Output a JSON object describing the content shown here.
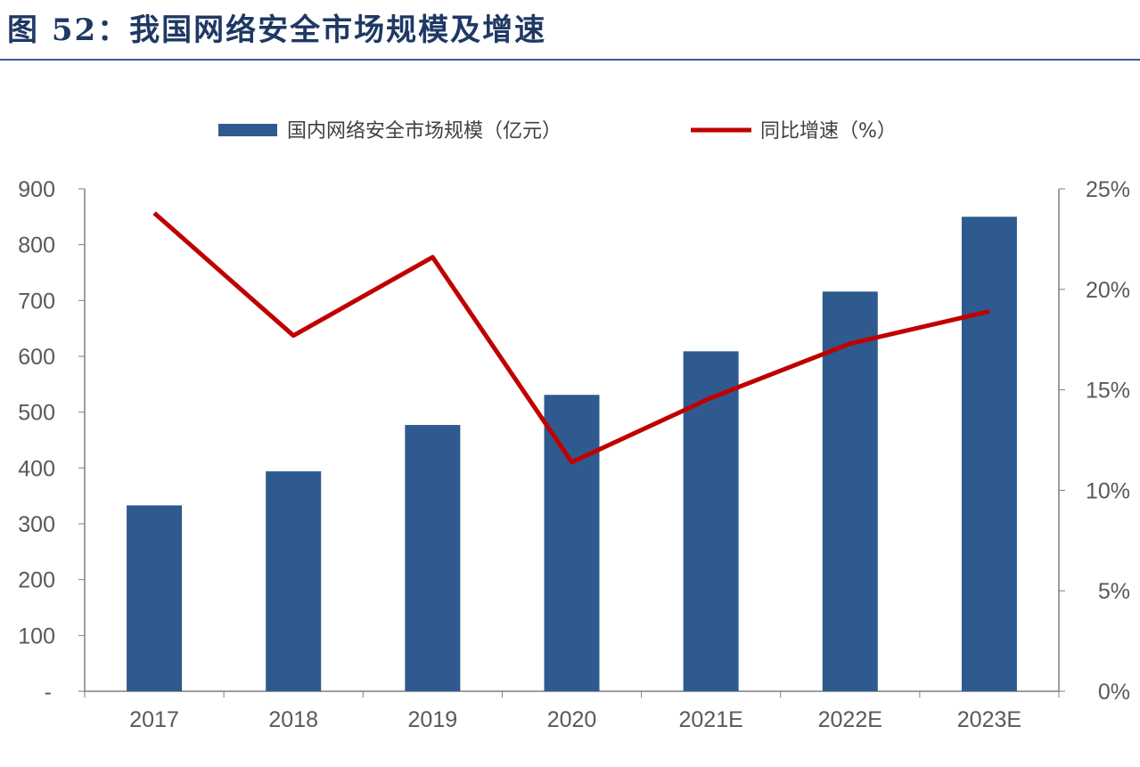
{
  "title": "图 52：我国网络安全市场规模及增速",
  "chart_data": {
    "type": "bar",
    "categories": [
      "2017",
      "2018",
      "2019",
      "2020",
      "2021E",
      "2022E",
      "2023E"
    ],
    "series": [
      {
        "name": "国内网络安全市场规模（亿元）",
        "type": "bar",
        "axis": "left",
        "color": "#2f5a8f",
        "values": [
          333,
          394,
          477,
          531,
          609,
          716,
          850
        ]
      },
      {
        "name": "同比增速（%）",
        "type": "line",
        "axis": "right",
        "color": "#c00000",
        "values": [
          23.8,
          17.7,
          21.6,
          11.4,
          14.6,
          17.3,
          18.9
        ]
      }
    ],
    "ylim": [
      0,
      900
    ],
    "y_ticks": [
      "-",
      "100",
      "200",
      "300",
      "400",
      "500",
      "600",
      "700",
      "800",
      "900"
    ],
    "y2lim": [
      0,
      25
    ],
    "y2_ticks": [
      "0%",
      "5%",
      "10%",
      "15%",
      "20%",
      "25%"
    ],
    "legend": "top",
    "grid": false
  }
}
